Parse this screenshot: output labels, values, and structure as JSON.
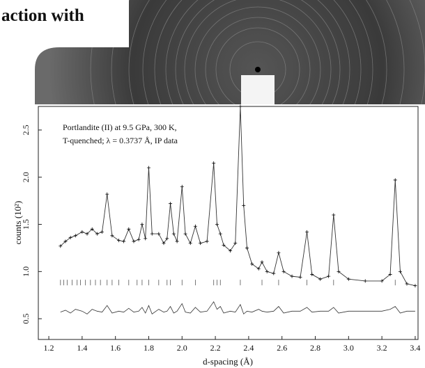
{
  "slide_title": "action with",
  "chart_data": {
    "type": "line",
    "annotation": [
      "Portlandite (II) at 9.5 GPa, 300 K,",
      "T-quenched; λ = 0.3737 Å, IP data"
    ],
    "xlabel": "d-spacing (Å)",
    "ylabel": "counts (10²)",
    "xlim": [
      1.137,
      3.417
    ],
    "ylim": [
      0.28,
      2.75
    ],
    "xticks": [
      1.2,
      1.4,
      1.6,
      1.8,
      {
        "value": 2,
        "label": "2.0"
      },
      2.2,
      2.4,
      2.6,
      2.8,
      {
        "value": 3,
        "label": "3.0"
      },
      3.2,
      3.4
    ],
    "yticks": [
      0.5,
      {
        "value": 1,
        "label": "1.0"
      },
      1.5,
      {
        "value": 2,
        "label": "2.0"
      },
      2.5
    ],
    "color": "#333333",
    "x": [
      1.27,
      1.3,
      1.33,
      1.36,
      1.4,
      1.43,
      1.46,
      1.49,
      1.52,
      1.55,
      1.58,
      1.62,
      1.65,
      1.68,
      1.71,
      1.74,
      1.76,
      1.78,
      1.8,
      1.82,
      1.86,
      1.89,
      1.91,
      1.93,
      1.95,
      1.97,
      2.0,
      2.02,
      2.05,
      2.08,
      2.11,
      2.15,
      2.19,
      2.21,
      2.23,
      2.25,
      2.29,
      2.32,
      2.35,
      2.37,
      2.39,
      2.42,
      2.46,
      2.48,
      2.51,
      2.55,
      2.58,
      2.61,
      2.66,
      2.71,
      2.75,
      2.78,
      2.83,
      2.88,
      2.91,
      2.94,
      3.0,
      3.1,
      3.2,
      3.25,
      3.28,
      3.31,
      3.35,
      3.4
    ],
    "values": [
      1.27,
      1.32,
      1.36,
      1.38,
      1.42,
      1.4,
      1.45,
      1.4,
      1.42,
      1.82,
      1.38,
      1.33,
      1.32,
      1.45,
      1.32,
      1.34,
      1.5,
      1.35,
      2.1,
      1.4,
      1.4,
      1.3,
      1.35,
      1.72,
      1.4,
      1.32,
      1.9,
      1.4,
      1.3,
      1.48,
      1.3,
      1.32,
      2.15,
      1.5,
      1.4,
      1.28,
      1.22,
      1.3,
      2.75,
      1.7,
      1.25,
      1.08,
      1.03,
      1.1,
      1.0,
      0.98,
      1.2,
      1.0,
      0.95,
      0.94,
      1.42,
      0.97,
      0.92,
      0.95,
      1.6,
      1.0,
      0.92,
      0.9,
      0.9,
      0.97,
      1.97,
      1.0,
      0.87,
      0.85
    ],
    "residual": [
      0.57,
      0.59,
      0.56,
      0.6,
      0.58,
      0.55,
      0.6,
      0.58,
      0.57,
      0.64,
      0.56,
      0.58,
      0.57,
      0.61,
      0.57,
      0.58,
      0.62,
      0.56,
      0.64,
      0.55,
      0.6,
      0.57,
      0.58,
      0.63,
      0.56,
      0.58,
      0.66,
      0.57,
      0.56,
      0.62,
      0.57,
      0.58,
      0.68,
      0.6,
      0.63,
      0.56,
      0.58,
      0.57,
      0.65,
      0.55,
      0.58,
      0.57,
      0.6,
      0.58,
      0.57,
      0.58,
      0.63,
      0.56,
      0.58,
      0.58,
      0.62,
      0.57,
      0.58,
      0.58,
      0.62,
      0.56,
      0.58,
      0.58,
      0.58,
      0.6,
      0.63,
      0.56,
      0.58,
      0.58
    ],
    "reflections": [
      1.27,
      1.29,
      1.31,
      1.34,
      1.37,
      1.39,
      1.42,
      1.45,
      1.48,
      1.51,
      1.55,
      1.58,
      1.62,
      1.68,
      1.73,
      1.76,
      1.8,
      1.86,
      1.91,
      1.93,
      2.0,
      2.08,
      2.19,
      2.21,
      2.23,
      2.35,
      2.48,
      2.58,
      2.75,
      2.91,
      3.28
    ]
  }
}
